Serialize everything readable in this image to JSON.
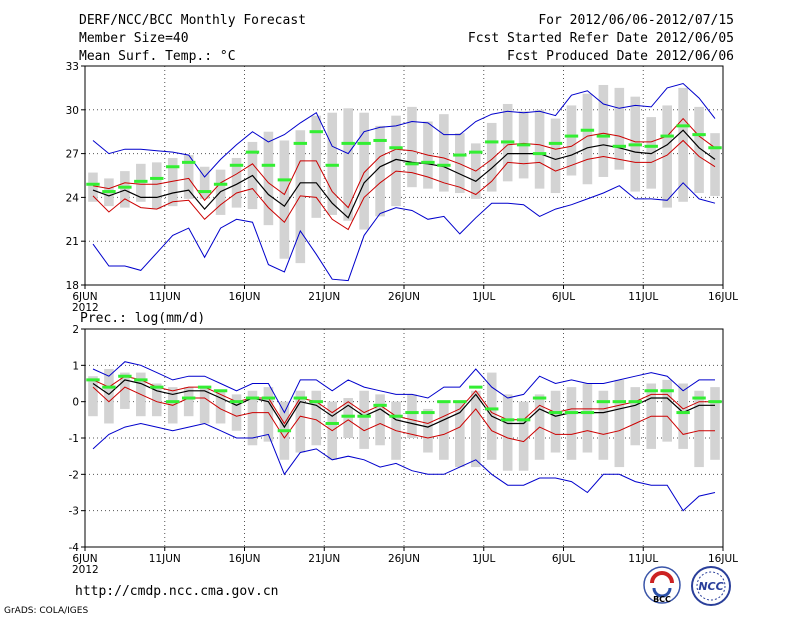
{
  "header": {
    "title": "DERF/NCC/BCC Monthly Forecast",
    "member_size": "Member Size=40",
    "variable": "Mean Surf. Temp.: °C",
    "period": "For 2012/06/06-2012/07/15",
    "started": "Fcst Started Refer Date 2012/06/05",
    "produced": "Fcst Produced Date 2012/06/06"
  },
  "footer": {
    "url": "http://cmdp.ncc.cma.gov.cn",
    "credit": "GrADS: COLA/IGES",
    "logo_bcc": "BCC",
    "logo_ncc": "NCC"
  },
  "colors": {
    "box": "#d3d3d3",
    "green": "#33ee33",
    "mean": "#000000",
    "spread": "#cc0000",
    "extreme": "#0000cc",
    "grid": "#555555"
  },
  "chart_data": [
    {
      "type": "line",
      "title": "Mean Surf. Temp.: °C",
      "x_tick_labels": [
        "6JUN",
        "11JUN",
        "16JUN",
        "21JUN",
        "26JUN",
        "1JUL",
        "6JUL",
        "11JUL",
        "16JUL"
      ],
      "x_year_label": "2012",
      "ylim": [
        18,
        33
      ],
      "yticks": [
        18,
        21,
        24,
        27,
        30,
        33
      ],
      "day_range": [
        0,
        40
      ],
      "days": [
        0,
        1,
        2,
        3,
        4,
        5,
        6,
        7,
        8,
        9,
        10,
        11,
        12,
        13,
        14,
        15,
        16,
        17,
        18,
        19,
        20,
        21,
        22,
        23,
        24,
        25,
        26,
        27,
        28,
        29,
        30,
        31,
        32,
        33,
        34,
        35,
        36,
        37,
        38,
        39
      ],
      "box_low": [
        23.7,
        23.4,
        23.3,
        23.7,
        23.2,
        23.4,
        23.9,
        23.9,
        22.8,
        23.3,
        23.2,
        22.1,
        19.8,
        19.5,
        22.6,
        22.8,
        22.4,
        21.8,
        22.7,
        23.4,
        24.7,
        24.6,
        24.4,
        24.3,
        23.9,
        24.4,
        25.1,
        25.3,
        24.6,
        24.3,
        25.5,
        24.9,
        25.4,
        25.9,
        24.4,
        24.6,
        23.3,
        23.7,
        24.3,
        24.1
      ],
      "box_high": [
        25.7,
        25.3,
        25.8,
        26.3,
        26.4,
        26.7,
        26.9,
        26.1,
        25.9,
        26.7,
        27.8,
        28.5,
        27.9,
        28.6,
        29.6,
        29.8,
        30.1,
        29.8,
        28.9,
        29.6,
        30.2,
        29.2,
        29.7,
        28.4,
        27.7,
        29.1,
        30.4,
        29.9,
        30.0,
        29.4,
        30.3,
        31.1,
        31.7,
        31.5,
        30.9,
        29.5,
        30.3,
        31.5,
        30.2,
        28.4
      ],
      "green": [
        24.9,
        24.4,
        24.7,
        25.1,
        25.3,
        26.1,
        26.4,
        24.4,
        24.9,
        26.2,
        27.1,
        26.2,
        25.2,
        27.7,
        28.5,
        26.2,
        27.7,
        27.7,
        27.9,
        27.4,
        26.3,
        26.4,
        26.2,
        26.9,
        27.1,
        27.8,
        27.8,
        27.6,
        27.0,
        27.7,
        28.2,
        28.6,
        28.2,
        27.5,
        27.6,
        27.5,
        28.2,
        28.9,
        28.3,
        27.4
      ],
      "mean": [
        24.5,
        24.1,
        24.5,
        24.0,
        24.0,
        24.3,
        24.5,
        23.2,
        24.4,
        24.9,
        25.5,
        24.2,
        23.4,
        25.0,
        25.0,
        23.6,
        22.6,
        25.0,
        26.1,
        26.6,
        26.4,
        26.3,
        26.1,
        25.6,
        25.1,
        26.0,
        27.0,
        27.0,
        27.0,
        26.6,
        26.9,
        27.4,
        27.6,
        27.4,
        27.1,
        27.0,
        27.6,
        28.6,
        27.4,
        26.6
      ],
      "upper": [
        24.8,
        24.6,
        25.0,
        24.9,
        24.9,
        25.1,
        25.3,
        23.8,
        25.0,
        25.6,
        26.3,
        25.0,
        24.2,
        26.5,
        26.5,
        24.4,
        23.3,
        25.7,
        26.8,
        27.3,
        27.2,
        26.9,
        26.7,
        26.3,
        25.8,
        26.6,
        27.6,
        27.7,
        27.6,
        27.3,
        27.5,
        28.2,
        28.4,
        28.2,
        27.8,
        27.8,
        28.2,
        29.4,
        28.2,
        27.4
      ],
      "lower": [
        24.1,
        23.0,
        23.9,
        23.3,
        23.2,
        23.7,
        23.8,
        22.5,
        23.5,
        24.3,
        24.6,
        23.3,
        22.3,
        24.1,
        24.0,
        22.5,
        21.8,
        24.0,
        25.0,
        25.8,
        25.7,
        25.4,
        25.0,
        24.7,
        24.2,
        25.1,
        26.4,
        26.3,
        26.4,
        25.8,
        26.2,
        26.6,
        26.8,
        26.6,
        26.4,
        26.4,
        26.9,
        27.9,
        26.8,
        26.1
      ],
      "max": [
        27.9,
        27.0,
        27.3,
        27.3,
        27.2,
        27.1,
        26.9,
        25.4,
        26.6,
        27.6,
        28.5,
        27.8,
        28.3,
        29.1,
        29.8,
        27.5,
        27.0,
        28.5,
        28.8,
        28.9,
        29.2,
        29.1,
        28.3,
        28.3,
        29.2,
        29.7,
        29.9,
        29.8,
        29.9,
        29.6,
        31.0,
        31.3,
        30.4,
        30.1,
        30.3,
        30.2,
        31.5,
        31.8,
        30.8,
        29.4
      ],
      "min": [
        20.8,
        19.3,
        19.3,
        19.0,
        20.2,
        21.4,
        21.9,
        19.9,
        21.9,
        22.5,
        22.3,
        19.4,
        18.9,
        21.7,
        20.1,
        18.4,
        18.3,
        21.4,
        22.9,
        23.3,
        23.1,
        22.5,
        22.7,
        21.5,
        22.6,
        23.6,
        23.6,
        23.5,
        22.7,
        23.2,
        23.5,
        23.9,
        24.3,
        24.8,
        23.9,
        23.9,
        23.8,
        25.0,
        23.9,
        23.6
      ]
    },
    {
      "type": "line",
      "title": "Prec.: log(mm/d)",
      "x_tick_labels": [
        "6JUN",
        "11JUN",
        "16JUN",
        "21JUN",
        "26JUN",
        "1JUL",
        "6JUL",
        "11JUL",
        "16JUL"
      ],
      "x_year_label": "2012",
      "ylim": [
        -4,
        2
      ],
      "yticks": [
        -4,
        -3,
        -2,
        -1,
        0,
        1,
        2
      ],
      "day_range": [
        0,
        40
      ],
      "days": [
        0,
        1,
        2,
        3,
        4,
        5,
        6,
        7,
        8,
        9,
        10,
        11,
        12,
        13,
        14,
        15,
        16,
        17,
        18,
        19,
        20,
        21,
        22,
        23,
        24,
        25,
        26,
        27,
        28,
        29,
        30,
        31,
        32,
        33,
        34,
        35,
        36,
        37,
        38,
        39
      ],
      "box_low": [
        -0.4,
        -0.6,
        -0.2,
        -0.4,
        -0.4,
        -0.6,
        -0.4,
        -0.6,
        -0.6,
        -0.8,
        -1.2,
        -1.1,
        -1.6,
        -1.4,
        -1.2,
        -1.6,
        -1.0,
        -1.3,
        -1.2,
        -1.6,
        -1.0,
        -1.4,
        -1.6,
        -1.8,
        -1.8,
        -1.6,
        -1.9,
        -1.9,
        -1.6,
        -1.4,
        -1.6,
        -1.4,
        -1.6,
        -1.8,
        -1.2,
        -1.3,
        -1.1,
        -1.3,
        -1.8,
        -1.6
      ],
      "box_high": [
        0.7,
        0.9,
        0.8,
        0.8,
        0.5,
        0.4,
        0.4,
        0.4,
        0.3,
        0.2,
        0.3,
        0.4,
        0.0,
        0.3,
        0.3,
        0.0,
        0.1,
        0.3,
        0.2,
        0.0,
        0.2,
        -0.2,
        0.0,
        0.0,
        0.3,
        0.8,
        0.2,
        0.0,
        0.2,
        0.3,
        0.4,
        0.5,
        0.3,
        0.6,
        0.4,
        0.5,
        0.6,
        0.5,
        0.3,
        0.4
      ],
      "green": [
        0.6,
        0.4,
        0.7,
        0.6,
        0.4,
        0.0,
        0.1,
        0.4,
        0.3,
        0.0,
        0.1,
        0.1,
        -0.8,
        0.1,
        0.0,
        -0.6,
        -0.4,
        -0.4,
        -0.1,
        -0.4,
        -0.3,
        -0.3,
        -0.0,
        -0.0,
        0.4,
        -0.2,
        -0.5,
        -0.5,
        0.1,
        -0.3,
        -0.3,
        -0.3,
        0.0,
        -0.0,
        0.0,
        0.3,
        0.3,
        -0.3,
        0.1,
        0.0
      ],
      "mean": [
        0.5,
        0.2,
        0.6,
        0.5,
        0.3,
        0.2,
        0.3,
        0.3,
        0.1,
        -0.1,
        0.1,
        0.0,
        -0.7,
        0.0,
        -0.1,
        -0.4,
        -0.1,
        -0.4,
        -0.2,
        -0.5,
        -0.6,
        -0.7,
        -0.5,
        -0.3,
        0.2,
        -0.4,
        -0.6,
        -0.6,
        -0.2,
        -0.4,
        -0.3,
        -0.3,
        -0.3,
        -0.2,
        -0.1,
        0.1,
        0.1,
        -0.3,
        -0.1,
        -0.1
      ],
      "upper": [
        0.6,
        0.4,
        0.7,
        0.6,
        0.4,
        0.3,
        0.4,
        0.4,
        0.2,
        0.0,
        0.1,
        0.1,
        -0.6,
        0.1,
        0.0,
        -0.3,
        0.0,
        -0.3,
        -0.1,
        -0.4,
        -0.5,
        -0.6,
        -0.4,
        -0.2,
        0.3,
        -0.3,
        -0.5,
        -0.5,
        -0.1,
        -0.3,
        -0.2,
        -0.2,
        -0.2,
        -0.1,
        0.0,
        0.2,
        0.2,
        -0.2,
        0.0,
        0.0
      ],
      "lower": [
        0.4,
        0.0,
        0.4,
        0.2,
        0.0,
        -0.1,
        0.1,
        0.1,
        -0.2,
        -0.4,
        -0.3,
        -0.3,
        -1.0,
        -0.4,
        -0.5,
        -0.8,
        -0.5,
        -0.8,
        -0.6,
        -0.8,
        -0.9,
        -1.0,
        -0.9,
        -0.7,
        -0.2,
        -0.8,
        -1.0,
        -1.1,
        -0.7,
        -0.9,
        -0.9,
        -0.8,
        -0.9,
        -0.8,
        -0.6,
        -0.4,
        -0.4,
        -0.9,
        -0.8,
        -0.8
      ],
      "max": [
        0.9,
        0.7,
        1.1,
        1.0,
        0.8,
        0.6,
        0.7,
        0.7,
        0.5,
        0.3,
        0.5,
        0.5,
        -0.3,
        0.6,
        0.6,
        0.3,
        0.6,
        0.4,
        0.3,
        0.2,
        0.2,
        0.1,
        0.4,
        0.4,
        0.9,
        0.4,
        0.1,
        0.2,
        0.7,
        0.5,
        0.6,
        0.5,
        0.5,
        0.6,
        0.7,
        0.8,
        0.7,
        0.3,
        0.6,
        0.6
      ],
      "min": [
        -1.3,
        -0.9,
        -0.7,
        -0.6,
        -0.7,
        -0.8,
        -0.7,
        -0.6,
        -0.8,
        -1.0,
        -1.0,
        -0.9,
        -2.0,
        -1.4,
        -1.3,
        -1.6,
        -1.5,
        -1.6,
        -1.8,
        -1.7,
        -1.9,
        -2.0,
        -2.0,
        -1.8,
        -1.6,
        -2.0,
        -2.3,
        -2.3,
        -2.1,
        -2.1,
        -2.2,
        -2.5,
        -2.0,
        -2.0,
        -2.2,
        -2.3,
        -2.3,
        -3.0,
        -2.6,
        -2.5
      ]
    }
  ]
}
